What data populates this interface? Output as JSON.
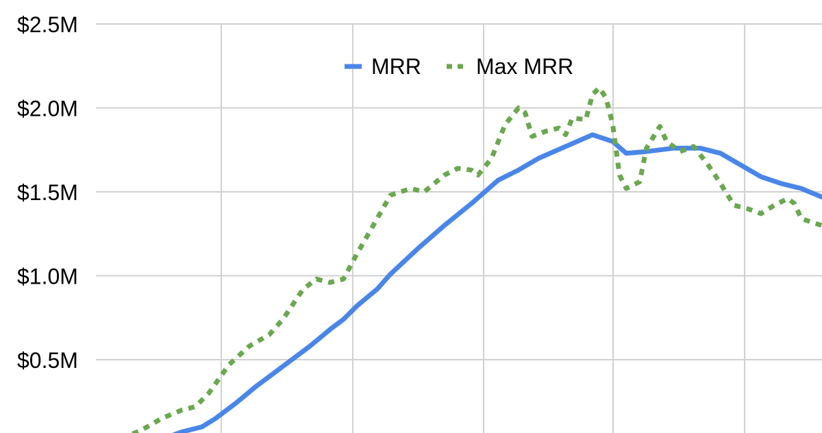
{
  "chart_data": {
    "type": "line",
    "title": "",
    "xlabel": "",
    "ylabel": "",
    "ylim": [
      0,
      2.5
    ],
    "y_ticks": [
      {
        "value": 2.5,
        "label": "$2.5M"
      },
      {
        "value": 2.0,
        "label": "$2.0M"
      },
      {
        "value": 1.5,
        "label": "$1.5M"
      },
      {
        "value": 1.0,
        "label": "$1.0M"
      },
      {
        "value": 0.5,
        "label": "$0.5M"
      }
    ],
    "grid": true,
    "legend_position": "top-center",
    "series": [
      {
        "name": "MRR",
        "color": "#4a86e8",
        "style": "solid",
        "points": [
          [
            0.18,
            0.0
          ],
          [
            0.22,
            0.01
          ],
          [
            0.25,
            0.04
          ],
          [
            0.27,
            0.07
          ],
          [
            0.3,
            0.1
          ],
          [
            0.32,
            0.15
          ],
          [
            0.35,
            0.24
          ],
          [
            0.38,
            0.34
          ],
          [
            0.42,
            0.46
          ],
          [
            0.46,
            0.58
          ],
          [
            0.49,
            0.68
          ],
          [
            0.51,
            0.74
          ],
          [
            0.53,
            0.82
          ],
          [
            0.56,
            0.92
          ],
          [
            0.58,
            1.01
          ],
          [
            0.62,
            1.16
          ],
          [
            0.66,
            1.3
          ],
          [
            0.7,
            1.43
          ],
          [
            0.74,
            1.57
          ],
          [
            0.77,
            1.63
          ],
          [
            0.8,
            1.7
          ],
          [
            0.84,
            1.77
          ],
          [
            0.88,
            1.84
          ],
          [
            0.91,
            1.8
          ],
          [
            0.93,
            1.73
          ],
          [
            0.96,
            1.74
          ],
          [
            1.0,
            1.76
          ],
          [
            1.04,
            1.76
          ],
          [
            1.07,
            1.73
          ],
          [
            1.1,
            1.66
          ],
          [
            1.13,
            1.59
          ],
          [
            1.16,
            1.55
          ],
          [
            1.19,
            1.52
          ],
          [
            1.22,
            1.47
          ]
        ]
      },
      {
        "name": "Max MRR",
        "color": "#6aa84f",
        "style": "dotted",
        "points": [
          [
            0.18,
            0.03
          ],
          [
            0.21,
            0.08
          ],
          [
            0.24,
            0.15
          ],
          [
            0.27,
            0.2
          ],
          [
            0.29,
            0.22
          ],
          [
            0.31,
            0.3
          ],
          [
            0.34,
            0.47
          ],
          [
            0.37,
            0.58
          ],
          [
            0.4,
            0.65
          ],
          [
            0.42,
            0.74
          ],
          [
            0.45,
            0.92
          ],
          [
            0.47,
            0.98
          ],
          [
            0.49,
            0.96
          ],
          [
            0.51,
            0.98
          ],
          [
            0.53,
            1.13
          ],
          [
            0.56,
            1.34
          ],
          [
            0.58,
            1.48
          ],
          [
            0.61,
            1.52
          ],
          [
            0.63,
            1.5
          ],
          [
            0.66,
            1.6
          ],
          [
            0.68,
            1.64
          ],
          [
            0.7,
            1.63
          ],
          [
            0.71,
            1.6
          ],
          [
            0.73,
            1.7
          ],
          [
            0.75,
            1.9
          ],
          [
            0.77,
            2.0
          ],
          [
            0.78,
            1.97
          ],
          [
            0.79,
            1.83
          ],
          [
            0.81,
            1.86
          ],
          [
            0.83,
            1.88
          ],
          [
            0.84,
            1.84
          ],
          [
            0.85,
            1.94
          ],
          [
            0.87,
            1.93
          ],
          [
            0.88,
            2.08
          ],
          [
            0.89,
            2.12
          ],
          [
            0.9,
            2.06
          ],
          [
            0.91,
            1.9
          ],
          [
            0.92,
            1.6
          ],
          [
            0.93,
            1.52
          ],
          [
            0.95,
            1.56
          ],
          [
            0.96,
            1.76
          ],
          [
            0.98,
            1.89
          ],
          [
            0.99,
            1.8
          ],
          [
            1.01,
            1.74
          ],
          [
            1.03,
            1.77
          ],
          [
            1.05,
            1.67
          ],
          [
            1.07,
            1.55
          ],
          [
            1.09,
            1.42
          ],
          [
            1.11,
            1.4
          ],
          [
            1.13,
            1.37
          ],
          [
            1.15,
            1.42
          ],
          [
            1.17,
            1.46
          ],
          [
            1.18,
            1.43
          ],
          [
            1.19,
            1.34
          ],
          [
            1.22,
            1.3
          ]
        ]
      }
    ]
  }
}
